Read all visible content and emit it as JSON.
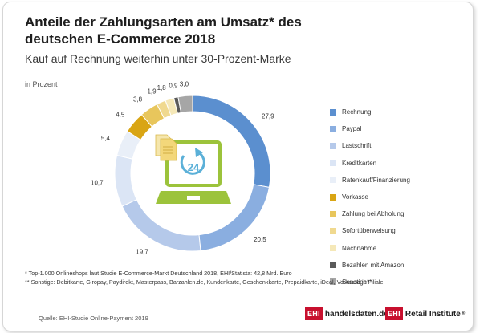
{
  "title": "Anteile der Zahlungsarten am Umsatz* des deutschen E-Commerce 2018",
  "subtitle": "Kauf auf Rechnung weiterhin unter 30-Prozent-Marke",
  "unit_label": "in Prozent",
  "chart_data": {
    "type": "pie",
    "donut": true,
    "title": "Anteile der Zahlungsarten am Umsatz* des deutschen E-Commerce 2018",
    "categories": [
      "Rechnung",
      "Paypal",
      "Lastschrift",
      "Kreditkarten",
      "Ratenkauf/Finanzierung",
      "Vorkasse",
      "Zahlung bei Abholung",
      "Sofortüberweisung",
      "Nachnahme",
      "Bezahlen mit Amazon",
      "Sonstige**"
    ],
    "values": [
      27.9,
      20.5,
      19.7,
      10.7,
      5.4,
      4.5,
      3.8,
      1.9,
      1.8,
      0.9,
      3.0
    ],
    "value_labels": [
      "27,9",
      "20,5",
      "19,7",
      "10,7",
      "5,4",
      "4,5",
      "3,8",
      "1,9",
      "1,8",
      "0,9",
      "3,0"
    ],
    "colors": [
      "#5b8fcf",
      "#8aaee0",
      "#b5c9ea",
      "#dbe5f5",
      "#e9eff8",
      "#d9a514",
      "#e8c65c",
      "#f0d98f",
      "#f5e8b8",
      "#5a5a5a",
      "#a6a6a6"
    ],
    "legend_position": "right"
  },
  "footnotes": [
    "*   Top-1.000 Onlineshops laut Studie E-Commerce-Markt Deutschland 2018, EHI/Statista: 42,8 Mrd. Euro",
    "**  Sonstige: Debitkarte, Giropay, Paydirekt, Masterpass, Barzahlen.de, Kundenkarte, Geschenkkarte, Prepaidkarte, iDeal, Vorkasse in Filiale"
  ],
  "source": "Quelle: EHI-Studie Online-Payment 2019",
  "logos": {
    "ehi_mark": "EHI",
    "logo1_text": "handelsdaten.de",
    "logo2_text": "Retail Institute",
    "registered": "®"
  },
  "center_icon": {
    "name": "laptop-24h-icon",
    "badge_text": "24",
    "colors": {
      "green": "#9cc33b",
      "document": "#f3d77a",
      "arrow": "#5bb0d8"
    }
  }
}
